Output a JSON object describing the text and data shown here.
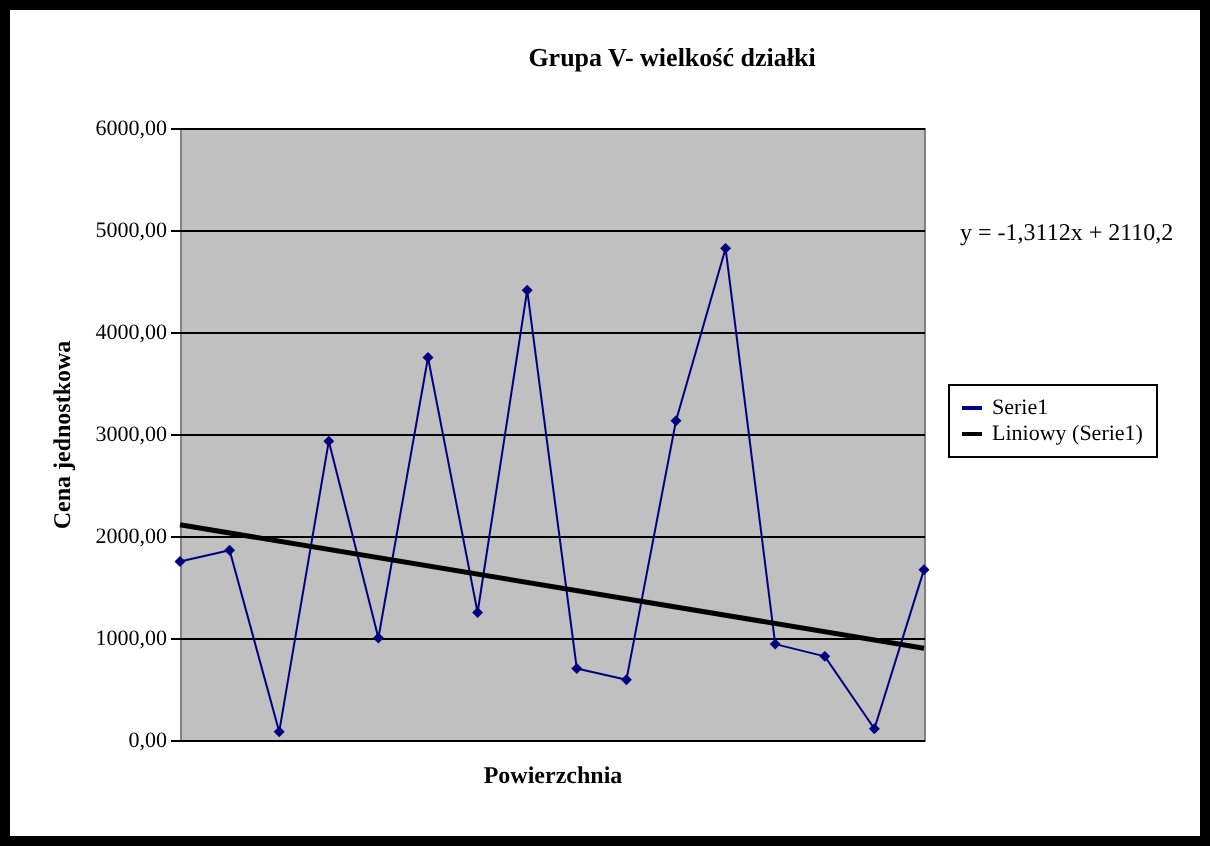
{
  "chart_data": {
    "type": "line",
    "title": "Grupa V- wielkość działki",
    "xlabel": "Powierzchnia",
    "ylabel": "Cena jednostkowa",
    "categories": [
      null,
      null,
      null,
      null,
      null,
      null,
      null,
      null,
      null,
      null,
      null,
      null,
      null,
      null,
      null,
      null
    ],
    "ylim": [
      0,
      6000
    ],
    "yticks": [
      {
        "value": 0,
        "label": "0,00"
      },
      {
        "value": 1000,
        "label": "1000,00"
      },
      {
        "value": 2000,
        "label": "2000,00"
      },
      {
        "value": 3000,
        "label": "3000,00"
      },
      {
        "value": 4000,
        "label": "4000,00"
      },
      {
        "value": 5000,
        "label": "5000,00"
      },
      {
        "value": 6000,
        "label": "6000,00"
      }
    ],
    "tick_labels": "y",
    "grid": "y",
    "legend": "right",
    "annotations": [
      "y = -1,3112x + 2110,2"
    ],
    "series": [
      {
        "name": "Serie1",
        "color": "#000080",
        "marker": "diamond",
        "values": [
          1750,
          1860,
          80,
          2930,
          1000,
          3750,
          1250,
          4410,
          700,
          590,
          3130,
          4820,
          940,
          820,
          110,
          1670
        ]
      },
      {
        "name": "Liniowy (Serie1)",
        "color": "#000000",
        "marker": "none",
        "values": [
          2110,
          null,
          null,
          null,
          null,
          null,
          null,
          null,
          null,
          null,
          null,
          null,
          null,
          null,
          null,
          900
        ]
      }
    ]
  }
}
